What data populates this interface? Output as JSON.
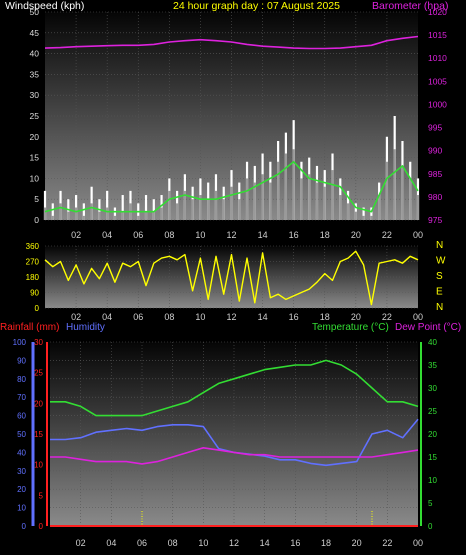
{
  "header": {
    "left_title": "Windspeed (kph)",
    "center_title": "24 hour graph day : 07 August 2025",
    "right_title": "Barometer (hpa)"
  },
  "colors": {
    "wind": "#c8c8c8",
    "gust": "#ffffff",
    "wind_avg": "#33dd33",
    "barometer": "#dd22dd",
    "direction": "#ffff00",
    "rain": "#ff2020",
    "humidity": "#6070ff",
    "temperature": "#33dd33",
    "dewpoint": "#dd22dd",
    "left_axis_red": "#ff2020",
    "humidity_axis": "#6070ff",
    "temp_axis": "#33dd33",
    "pressure_axis": "#dd22dd"
  },
  "time_ticks": [
    "02",
    "04",
    "06",
    "08",
    "10",
    "12",
    "14",
    "16",
    "18",
    "20",
    "22",
    "00"
  ],
  "chart_data": [
    {
      "type": "line",
      "title": "",
      "x_unit": "hour",
      "xlim": [
        0,
        24
      ],
      "left_axis": {
        "label": "Windspeed (kph)",
        "ylim": [
          0,
          50
        ],
        "ticks": [
          "0",
          "5",
          "10",
          "15",
          "20",
          "25",
          "30",
          "35",
          "40",
          "45",
          "50"
        ]
      },
      "right_axis": {
        "label": "Barometer (hpa)",
        "ylim": [
          975,
          1020
        ],
        "ticks": [
          "975",
          "980",
          "985",
          "990",
          "995",
          "1000",
          "1005",
          "1010",
          "1015",
          "1020"
        ]
      },
      "series": [
        {
          "name": "gust",
          "axis": "left",
          "x": [
            0,
            0.5,
            1,
            1.5,
            2,
            2.5,
            3,
            3.5,
            4,
            4.5,
            5,
            5.5,
            6,
            6.5,
            7,
            7.5,
            8,
            8.5,
            9,
            9.5,
            10,
            10.5,
            11,
            11.5,
            12,
            12.5,
            13,
            13.5,
            14,
            14.5,
            15,
            15.5,
            16,
            16.5,
            17,
            17.5,
            18,
            18.5,
            19,
            19.5,
            20,
            20.5,
            21,
            21.5,
            22,
            22.5,
            23,
            23.5,
            24
          ],
          "values": [
            7,
            4,
            7,
            5,
            6,
            4,
            8,
            5,
            7,
            3,
            6,
            7,
            4,
            6,
            5,
            6,
            10,
            7,
            11,
            8,
            10,
            9,
            11,
            8,
            12,
            9,
            14,
            13,
            16,
            14,
            19,
            21,
            24,
            14,
            15,
            13,
            12,
            16,
            10,
            7,
            4,
            3,
            3,
            9,
            20,
            25,
            19,
            14,
            10
          ]
        },
        {
          "name": "wind",
          "axis": "left",
          "x": [
            0,
            0.5,
            1,
            1.5,
            2,
            2.5,
            3,
            3.5,
            4,
            4.5,
            5,
            5.5,
            6,
            6.5,
            7,
            7.5,
            8,
            8.5,
            9,
            9.5,
            10,
            10.5,
            11,
            11.5,
            12,
            12.5,
            13,
            13.5,
            14,
            14.5,
            15,
            15.5,
            16,
            16.5,
            17,
            17.5,
            18,
            18.5,
            19,
            19.5,
            20,
            20.5,
            21,
            21.5,
            22,
            22.5,
            23,
            23.5,
            24
          ],
          "values": [
            3,
            1,
            4,
            2,
            3,
            1,
            4,
            2,
            3,
            1,
            2,
            4,
            1,
            2,
            2,
            3,
            7,
            4,
            7,
            5,
            6,
            5,
            7,
            5,
            8,
            5,
            10,
            9,
            11,
            9,
            14,
            16,
            17,
            10,
            11,
            9,
            8,
            12,
            6,
            4,
            2,
            1,
            1,
            6,
            14,
            17,
            13,
            10,
            6
          ]
        },
        {
          "name": "wind_avg",
          "axis": "left",
          "x": [
            0,
            1,
            2,
            3,
            4,
            5,
            6,
            7,
            8,
            9,
            10,
            11,
            12,
            13,
            14,
            15,
            16,
            17,
            18,
            19,
            20,
            21,
            22,
            23,
            24
          ],
          "values": [
            2,
            3,
            2,
            3,
            2,
            2,
            2,
            2,
            5,
            6,
            5,
            5,
            6,
            7,
            9,
            11,
            14,
            10,
            9,
            8,
            3,
            2,
            10,
            13,
            7
          ]
        },
        {
          "name": "barometer",
          "axis": "right",
          "x": [
            0,
            1,
            2,
            3,
            4,
            5,
            6,
            7,
            8,
            9,
            10,
            11,
            12,
            13,
            14,
            15,
            16,
            17,
            18,
            19,
            20,
            21,
            22,
            23,
            24
          ],
          "values": [
            1012.2,
            1012.3,
            1012.5,
            1012.6,
            1012.7,
            1012.8,
            1012.8,
            1013.0,
            1013.5,
            1013.8,
            1014.0,
            1013.8,
            1013.5,
            1013.0,
            1012.6,
            1012.4,
            1012.2,
            1012.1,
            1012.1,
            1012.2,
            1012.5,
            1012.8,
            1013.8,
            1014.3,
            1014.7
          ]
        }
      ]
    },
    {
      "type": "scatter",
      "title": "",
      "xlim": [
        0,
        24
      ],
      "left_axis": {
        "ylim": [
          0,
          360
        ],
        "ticks": [
          "0",
          "90",
          "180",
          "270",
          "360"
        ]
      },
      "right_labels": [
        "N",
        "W",
        "S",
        "E",
        "N"
      ],
      "series": [
        {
          "name": "wind_direction",
          "x": [
            0,
            0.5,
            1,
            1.5,
            2,
            2.5,
            3,
            3.5,
            4,
            4.5,
            5,
            5.5,
            6,
            6.5,
            7,
            7.5,
            8,
            8.5,
            9,
            9.5,
            10,
            10.5,
            11,
            11.5,
            12,
            12.5,
            13,
            13.5,
            14,
            14.5,
            15,
            15.5,
            16,
            16.5,
            17,
            17.5,
            18,
            18.5,
            19,
            19.5,
            20,
            20.5,
            21,
            21.5,
            22,
            22.5,
            23,
            23.5,
            24
          ],
          "values": [
            280,
            240,
            270,
            160,
            250,
            140,
            230,
            170,
            260,
            150,
            260,
            240,
            270,
            130,
            260,
            290,
            300,
            280,
            310,
            100,
            290,
            50,
            300,
            80,
            310,
            40,
            290,
            30,
            320,
            60,
            80,
            50,
            70,
            90,
            110,
            150,
            200,
            160,
            270,
            290,
            330,
            250,
            20,
            260,
            270,
            280,
            260,
            300,
            280
          ]
        }
      ]
    },
    {
      "type": "line",
      "title": "",
      "xlim": [
        0,
        24
      ],
      "axis_labels": {
        "rain": "Rainfall (mm)",
        "humidity": "Humidity",
        "temperature": "Temperature (°C)",
        "dewpoint": "Dew Point (°C)"
      },
      "humidity_axis": {
        "ylim": [
          0,
          100
        ],
        "ticks": [
          "0",
          "10",
          "20",
          "30",
          "40",
          "50",
          "60",
          "70",
          "80",
          "90",
          "100"
        ]
      },
      "rain_axis": {
        "ylim": [
          0,
          30
        ],
        "ticks": [
          "0",
          "5",
          "10",
          "15",
          "20",
          "25",
          "30"
        ]
      },
      "temp_axis": {
        "ylim": [
          0,
          40
        ],
        "ticks": [
          "0",
          "5",
          "10",
          "15",
          "20",
          "25",
          "30",
          "35",
          "40"
        ]
      },
      "markers_x": [
        6,
        21
      ],
      "series": [
        {
          "name": "Rainfall",
          "axis": "rain",
          "x": [
            0,
            24
          ],
          "values": [
            0,
            0
          ]
        },
        {
          "name": "Humidity",
          "axis": "humidity",
          "x": [
            0,
            1,
            2,
            3,
            4,
            5,
            6,
            7,
            8,
            9,
            10,
            11,
            12,
            13,
            14,
            15,
            16,
            17,
            18,
            19,
            20,
            21,
            22,
            23,
            24
          ],
          "values": [
            47,
            47,
            48,
            51,
            52,
            53,
            52,
            54,
            55,
            55,
            54,
            42,
            40,
            39,
            38,
            36,
            36,
            34,
            33,
            34,
            35,
            50,
            52,
            48,
            58
          ]
        },
        {
          "name": "Temperature",
          "axis": "temp",
          "x": [
            0,
            1,
            2,
            3,
            4,
            5,
            6,
            7,
            8,
            9,
            10,
            11,
            12,
            13,
            14,
            15,
            16,
            17,
            18,
            19,
            20,
            21,
            22,
            23,
            24
          ],
          "values": [
            27,
            27,
            26,
            24,
            24,
            24,
            24,
            25,
            26,
            27,
            29,
            31,
            32,
            33,
            34,
            34.5,
            35,
            35,
            36,
            35,
            33,
            30,
            27,
            27,
            26
          ]
        },
        {
          "name": "Dew Point",
          "axis": "temp",
          "x": [
            0,
            1,
            2,
            3,
            4,
            5,
            6,
            7,
            8,
            9,
            10,
            11,
            12,
            13,
            14,
            15,
            16,
            17,
            18,
            19,
            20,
            21,
            22,
            23,
            24
          ],
          "values": [
            15,
            15,
            14.5,
            14,
            14,
            14,
            13.5,
            14,
            15,
            16,
            17,
            16.5,
            16,
            15.5,
            15.5,
            15,
            15,
            15,
            15,
            15,
            15,
            15,
            15.5,
            16,
            16.5
          ]
        }
      ]
    }
  ]
}
